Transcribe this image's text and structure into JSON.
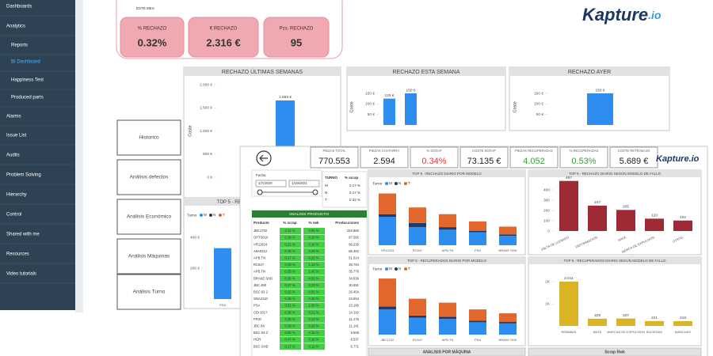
{
  "sidebar": {
    "items": [
      "Dashboards",
      "Analytics",
      "Reports",
      "BI Dashboard",
      "Happiness Test",
      "Produced parts",
      "Alarms",
      "Issue List",
      "Audits",
      "Problem Solving",
      "Hierarchy",
      "Control",
      "Shared with me",
      "Resources",
      "Video tutorials"
    ]
  },
  "header": {
    "period": "ESTE MES",
    "kpis": [
      {
        "label": "% RECHAZO",
        "value": "0.32%"
      },
      {
        "label": "€ RECHAZO",
        "value": "2.316 €"
      },
      {
        "label": "Pzs. RECHAZO",
        "value": "95"
      }
    ],
    "logo": {
      "name": "Kapture",
      "suffix": ".io"
    }
  },
  "menu_buttons": [
    "Historico",
    "Análisis defectos",
    "Análisis Económico",
    "Análisis Máquinas",
    "Análisis Turno"
  ],
  "front": {
    "kpis": [
      {
        "label": "PIEZAS TOTAL",
        "value": "770.553"
      },
      {
        "label": "PIEZAS CHATARRA",
        "value": "2.594"
      },
      {
        "label": "% SCRAP",
        "value": "0.34%",
        "color": "#e03a3a"
      },
      {
        "label": "COSTE SCRAP",
        "value": "73.135 €"
      },
      {
        "label": "PIEZAS RECUPERADAS",
        "value": "4.052",
        "color": "#3a9e3a"
      },
      {
        "label": "% RECUPERADAS",
        "value": "0.53%",
        "color": "#3a9e3a"
      },
      {
        "label": "COSTE RETRABAJO",
        "value": "5.689 €"
      }
    ],
    "logo": "Kapture.io",
    "date_filter": {
      "label": "Fecha",
      "from": "1/7/2020",
      "to": "1/19/2021"
    },
    "turno_table": {
      "header": [
        "TURNO",
        "% scrap"
      ],
      "rows": [
        [
          "M",
          "0.17 %"
        ],
        [
          "N",
          "0.17 %"
        ],
        [
          "T",
          "0.32 %"
        ]
      ]
    },
    "product_table": {
      "title": "ANALISIS PRODUCTO",
      "header": [
        "Producto",
        "% scrap",
        "% rwk",
        "Producciones"
      ],
      "rows": [
        [
          "JBC1702",
          "0.14 %",
          "0.05 %",
          "153.860"
        ],
        [
          "OPTS610",
          "0.19 %",
          "0.10 %",
          "67.582"
        ],
        [
          "VR11924",
          "0.21 %",
          "0.16 %",
          "66.235"
        ],
        [
          "A8A0212",
          "0.16 %",
          "0.29 %",
          "65.452"
        ],
        [
          "APB.TN",
          "0.27 %",
          "0.25 %",
          "51.614"
        ],
        [
          "RC647",
          "0.28 %",
          "1.14 %",
          "46.784"
        ],
        [
          "APB.TN",
          "0.35 %",
          "1.45 %",
          "35.776"
        ],
        [
          "BRAKE SHD",
          "0.36 %",
          "0.51 %",
          "34.936"
        ],
        [
          "JBC 480",
          "0.27 %",
          "0.23 %",
          "30.591"
        ],
        [
          "BSC 63 2",
          "0.22 %",
          "0.02 %",
          "26.454"
        ],
        [
          "GBA2110",
          "0.15 %",
          "0.15 %",
          "24.654"
        ],
        [
          "PSA",
          "0.61 %",
          "1.00 %",
          "23.180"
        ],
        [
          "CBI 2017",
          "0.36 %",
          "0.21 %",
          "14.192"
        ],
        [
          "FRIO",
          "0.25 %",
          "0.13 %",
          "11.176"
        ],
        [
          "JBC BV",
          "0.28 %",
          "0.26 %",
          "11.141"
        ],
        [
          "BSC 63 2",
          "0.66 %",
          "0.16 %",
          "9.506"
        ],
        [
          "HGR",
          "0.47 %",
          "0.16 %",
          "8.537"
        ],
        [
          "BSC SHD",
          "0.17 %",
          "0.11 %",
          "6.771"
        ]
      ],
      "cell_color": "#43cf43"
    },
    "bottom_panels": [
      "ANALISIS POR MÁQUINA",
      "Scrap Rwk"
    ]
  },
  "chart_data": [
    {
      "type": "bar",
      "title": "RECHAZO ÚLTIMAS SEMANAS",
      "y_label": "Coste",
      "categories": [
        null
      ],
      "values": [
        1659
      ],
      "value_labels": [
        "1.659 €"
      ],
      "color": "#2d8ef0",
      "ylim": [
        0,
        2000
      ],
      "yticks": [
        {
          "value": 0,
          "label": "0 €"
        },
        {
          "value": 500,
          "label": "500 €"
        },
        {
          "value": 1000,
          "label": "1.000 €"
        },
        {
          "value": 1500,
          "label": "1.500 €"
        },
        {
          "value": 2000,
          "label": "2.000 €"
        }
      ]
    },
    {
      "type": "bar",
      "title": "RECHAZO ESTA SEMANA",
      "y_label": "Coste",
      "categories": [
        null,
        null
      ],
      "values": [
        125,
        150
      ],
      "value_labels": [
        "125 €",
        "150 €"
      ],
      "color": "#2d8ef0",
      "ylim": [
        0,
        170
      ],
      "yticks": [
        {
          "value": 50,
          "label": "50 €"
        },
        {
          "value": 100,
          "label": "100 €"
        },
        {
          "value": 150,
          "label": "150 €"
        }
      ]
    },
    {
      "type": "bar",
      "title": "RECHAZO AYER",
      "y_label": "Coste",
      "categories": [
        null
      ],
      "values": [
        150
      ],
      "value_labels": [
        "150 €"
      ],
      "color": "#2d8ef0",
      "ylim": [
        0,
        170
      ],
      "yticks": [
        {
          "value": 50,
          "label": "50 €"
        },
        {
          "value": 100,
          "label": "100 €"
        },
        {
          "value": 150,
          "label": "150 €"
        }
      ]
    },
    {
      "type": "stacked_bar",
      "title": "TOP 5 - RECHAZO DIARIO POR MODELO",
      "legend_title": "Turno",
      "categories": [
        "PSA"
      ],
      "series": [
        {
          "name": "M",
          "color": "#2d8ef0",
          "values": [
            330
          ]
        },
        {
          "name": "N",
          "color": "#1f3a6e",
          "values": [
            0
          ]
        },
        {
          "name": "T",
          "color": "#e2672c",
          "values": [
            0
          ]
        }
      ],
      "ylim": [
        0,
        450
      ],
      "yticks": [
        {
          "value": 200,
          "label": "200 €"
        },
        {
          "value": 400,
          "label": "400 €"
        }
      ]
    },
    {
      "type": "stacked_bar",
      "title": "TOP 5 - RECHAZO DIARIO POR MODELO",
      "legend_title": "Turno",
      "categories": [
        "VR11924",
        "RC647",
        "APB.TN",
        "PSA",
        "BRAKE SHD"
      ],
      "series": [
        {
          "name": "M",
          "color": "#2d8ef0",
          "values": [
            55,
            35,
            30,
            25,
            18
          ]
        },
        {
          "name": "N",
          "color": "#1f3a6e",
          "values": [
            5,
            8,
            5,
            3,
            3
          ]
        },
        {
          "name": "T",
          "color": "#e2672c",
          "values": [
            40,
            30,
            25,
            18,
            15
          ]
        }
      ],
      "ylim": [
        0,
        110
      ]
    },
    {
      "type": "bar",
      "title": "TOP 5 - RECHAZO DIARIO SEGÚN MODELO DE FALLO",
      "categories": [
        "FALTA DE LLENADO",
        "DEFORMACION",
        "RAYA",
        "MARCA DE EXPULSION",
        "OTROS"
      ],
      "values": [
        487,
        247,
        205,
        120,
        102
      ],
      "color": "#9e2a35",
      "ylim": [
        0,
        500
      ],
      "yticks": [
        0,
        100,
        200,
        300,
        400
      ]
    },
    {
      "type": "stacked_bar",
      "title": "TOP 5 - RECUPERADOS DIARIO POR MODELO",
      "legend_title": "Turno",
      "categories": [
        "JBC1702",
        "RC647",
        "APB.TN",
        "PSA",
        "BRAKE SHD"
      ],
      "series": [
        {
          "name": "M",
          "color": "#2d8ef0",
          "values": [
            45,
            30,
            28,
            22,
            20
          ]
        },
        {
          "name": "N",
          "color": "#1f3a6e",
          "values": [
            5,
            4,
            4,
            3,
            3
          ]
        },
        {
          "name": "T",
          "color": "#e2672c",
          "values": [
            50,
            30,
            25,
            20,
            15
          ]
        }
      ],
      "ylim": [
        0,
        110
      ]
    },
    {
      "type": "bar",
      "title": "TOP 5 - RECUPERADOS DIARIO SEGÚN MODELO DE FALLO",
      "categories": [
        "REBABAS",
        "MATE",
        "MARCAS DE EXPULSION",
        "SUCIEDAD",
        "MANCHAS"
      ],
      "values": [
        2011,
        329,
        337,
        221,
        218
      ],
      "value_labels": [
        "2.011",
        "329",
        "337",
        "221",
        "218"
      ],
      "color": "#d9b526",
      "ylim": [
        0,
        2400
      ],
      "yticks": [
        {
          "value": 1000,
          "label": "1K"
        },
        {
          "value": 2000,
          "label": "2K"
        }
      ]
    }
  ]
}
